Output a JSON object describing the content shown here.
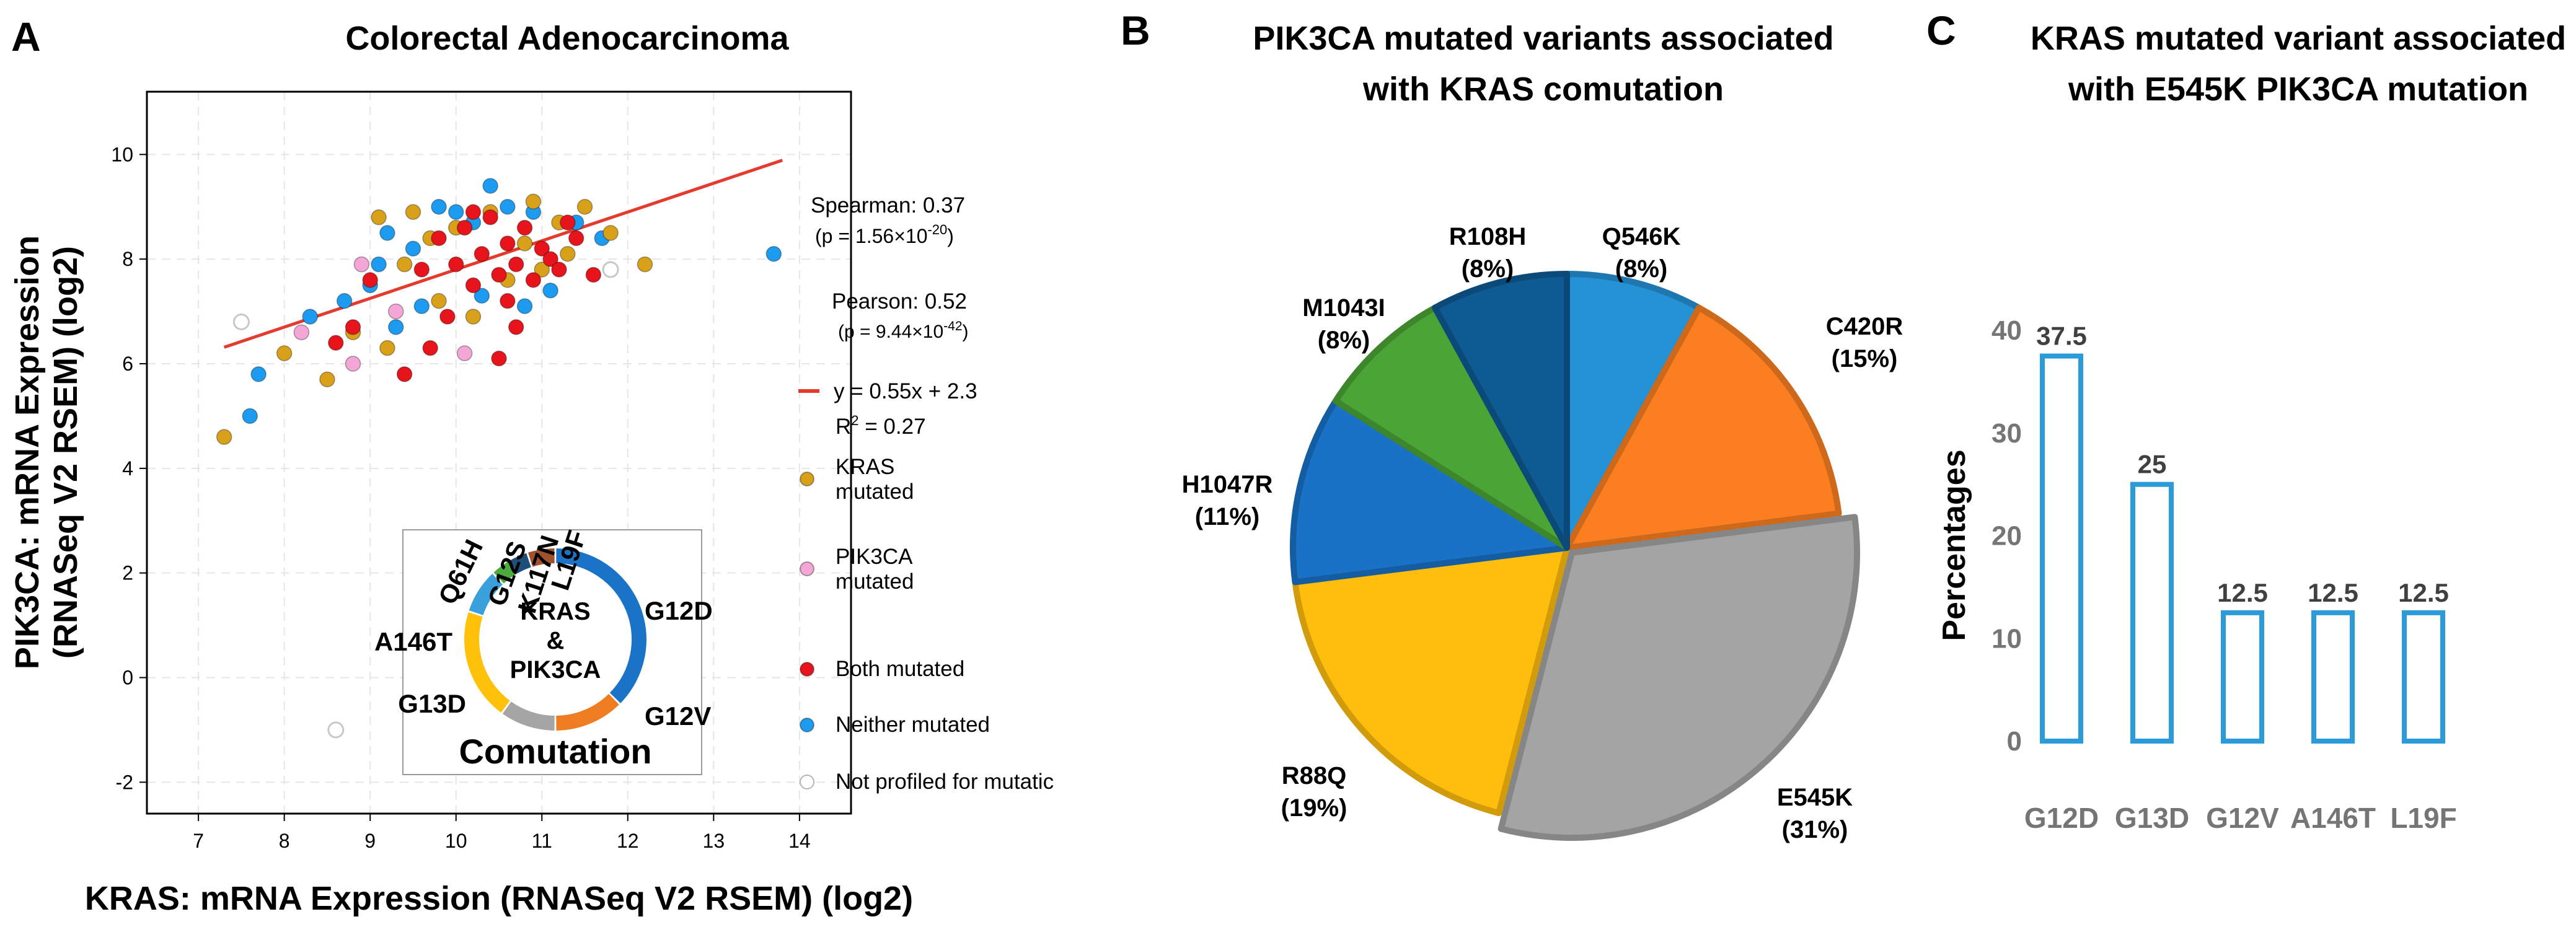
{
  "panel_a": {
    "letter": "A",
    "title": "Colorectal Adenocarcinoma",
    "xlabel": "KRAS: mRNA Expression (RNASeq V2 RSEM) (log2)",
    "ylabel_line1": "PIK3CA: mRNA Expression",
    "ylabel_line2": "(RNASeq V2 RSEM) (log2)",
    "stats": {
      "spearman": "Spearman: 0.37",
      "spearman_p": "(p = 1.56×10",
      "spearman_p_exp": "-20",
      "pearson": "Pearson: 0.52",
      "pearson_p": "(p = 9.44×10",
      "pearson_p_exp": "-42",
      "equation": "y = 0.55x + 2.3",
      "r2": "R",
      "r2_sup": "2",
      "r2_value": " = 0.27"
    },
    "legend": [
      {
        "label": "KRAS",
        "label2": "mutated",
        "color": "#d9a11a"
      },
      {
        "label": "PIK3CA",
        "label2": "mutated",
        "color": "#f4a6d7"
      },
      {
        "label": "Both mutated",
        "label2": "",
        "color": "#e8141b"
      },
      {
        "label": "Neither mutated",
        "label2": "",
        "color": "#1c9bf0"
      },
      {
        "label": "Not profiled for mutatic",
        "label2": "",
        "color": "#ffffff"
      }
    ],
    "donut": {
      "center_line1": "KRAS",
      "center_line2": "&",
      "center_line3": "PIK3CA",
      "caption": "Comutation",
      "segments": [
        {
          "label": "G12D",
          "value": 37.5,
          "color": "#1a73c7"
        },
        {
          "label": "G12V",
          "value": 12.5,
          "color": "#ee7d22"
        },
        {
          "label": "G13D",
          "value": 10,
          "color": "#a5a5a5"
        },
        {
          "label": "A146T",
          "value": 20,
          "color": "#ffc10a"
        },
        {
          "label": "Q61H",
          "value": 8,
          "color": "#3aa0dc"
        },
        {
          "label": "G12S",
          "value": 3.5,
          "color": "#4daa3e"
        },
        {
          "label": "K117N",
          "value": 3.5,
          "color": "#1f4e79"
        },
        {
          "label": "L19F",
          "value": 5,
          "color": "#a0522d"
        }
      ]
    }
  },
  "panel_b": {
    "letter": "B",
    "title_line1": "PIK3CA mutated variants associated",
    "title_line2": "with KRAS comutation"
  },
  "panel_c": {
    "letter": "C",
    "title_line1": "KRAS mutated variant associated",
    "title_line2": "with E545K PIK3CA mutation"
  },
  "chart_data": [
    {
      "type": "scatter",
      "title": "Colorectal Adenocarcinoma",
      "xlabel": "KRAS: mRNA Expression (RNASeq V2 RSEM) (log2)",
      "ylabel": "PIK3CA: mRNA Expression (RNASeq V2 RSEM) (log2)",
      "xlim": [
        6.4,
        14.6
      ],
      "ylim": [
        -2.6,
        11.2
      ],
      "xticks": [
        7,
        8,
        9,
        10,
        11,
        12,
        13,
        14
      ],
      "yticks": [
        -2,
        0,
        2,
        4,
        6,
        8,
        10
      ],
      "grid": true,
      "fit_line": {
        "slope": 0.55,
        "intercept": 2.3,
        "x_range": [
          7.3,
          13.8
        ],
        "color": "#e53a2e"
      },
      "series": [
        {
          "name": "KRAS mutated",
          "color": "#d9a11a",
          "points": [
            [
              7.3,
              4.6
            ],
            [
              8.0,
              6.2
            ],
            [
              8.5,
              5.7
            ],
            [
              9.1,
              8.8
            ],
            [
              9.4,
              7.9
            ],
            [
              9.7,
              8.4
            ],
            [
              10.0,
              8.6
            ],
            [
              10.4,
              8.9
            ],
            [
              10.8,
              8.3
            ],
            [
              11.2,
              8.7
            ],
            [
              11.5,
              9.0
            ],
            [
              12.2,
              7.9
            ],
            [
              9.8,
              7.2
            ],
            [
              10.6,
              7.6
            ],
            [
              11.0,
              7.8
            ],
            [
              8.8,
              6.6
            ],
            [
              9.2,
              6.3
            ],
            [
              10.2,
              6.9
            ],
            [
              11.8,
              8.5
            ],
            [
              9.5,
              8.9
            ],
            [
              10.9,
              9.1
            ],
            [
              11.3,
              8.1
            ]
          ]
        },
        {
          "name": "PIK3CA mutated",
          "color": "#f4a6d7",
          "points": [
            [
              8.2,
              6.6
            ],
            [
              8.8,
              6.0
            ],
            [
              8.9,
              7.9
            ],
            [
              9.3,
              7.0
            ],
            [
              10.1,
              6.2
            ]
          ]
        },
        {
          "name": "Both mutated",
          "color": "#e8141b",
          "points": [
            [
              8.6,
              6.4
            ],
            [
              9.0,
              7.6
            ],
            [
              9.4,
              5.8
            ],
            [
              9.6,
              7.8
            ],
            [
              9.8,
              8.4
            ],
            [
              10.0,
              7.9
            ],
            [
              10.1,
              8.6
            ],
            [
              10.2,
              7.5
            ],
            [
              10.3,
              8.1
            ],
            [
              10.4,
              8.8
            ],
            [
              10.5,
              7.7
            ],
            [
              10.6,
              8.3
            ],
            [
              10.7,
              7.9
            ],
            [
              10.8,
              8.6
            ],
            [
              10.9,
              7.6
            ],
            [
              11.0,
              8.2
            ],
            [
              11.1,
              8.0
            ],
            [
              11.2,
              7.8
            ],
            [
              11.4,
              8.4
            ],
            [
              9.9,
              6.9
            ],
            [
              10.5,
              6.1
            ],
            [
              10.7,
              6.7
            ],
            [
              11.6,
              7.7
            ],
            [
              9.7,
              6.3
            ],
            [
              8.8,
              6.7
            ],
            [
              10.2,
              8.9
            ],
            [
              10.6,
              7.2
            ],
            [
              11.3,
              8.7
            ]
          ]
        },
        {
          "name": "Neither mutated",
          "color": "#1c9bf0",
          "points": [
            [
              7.6,
              5.0
            ],
            [
              7.7,
              5.8
            ],
            [
              8.3,
              6.9
            ],
            [
              8.7,
              7.2
            ],
            [
              9.0,
              7.5
            ],
            [
              9.2,
              8.5
            ],
            [
              9.5,
              8.2
            ],
            [
              9.8,
              9.0
            ],
            [
              10.0,
              8.9
            ],
            [
              10.2,
              8.7
            ],
            [
              10.4,
              9.4
            ],
            [
              10.6,
              9.0
            ],
            [
              10.9,
              8.9
            ],
            [
              11.4,
              8.7
            ],
            [
              11.7,
              8.4
            ],
            [
              13.7,
              8.1
            ],
            [
              9.3,
              6.7
            ],
            [
              9.6,
              7.1
            ],
            [
              10.3,
              7.3
            ],
            [
              10.8,
              7.1
            ],
            [
              11.1,
              7.4
            ],
            [
              9.1,
              7.9
            ]
          ]
        },
        {
          "name": "Not profiled for mutatic",
          "color": "#ffffff",
          "points": [
            [
              7.5,
              6.8
            ],
            [
              8.6,
              -1.0
            ],
            [
              11.8,
              7.8
            ]
          ]
        }
      ]
    },
    {
      "type": "pie",
      "title": "PIK3CA mutated variants associated with KRAS comutation",
      "slices": [
        {
          "label": "Q546K",
          "value": 8,
          "pct": "(8%)",
          "color": "#2592d6"
        },
        {
          "label": "C420R",
          "value": 15,
          "pct": "(15%)",
          "color": "#fb7f20"
        },
        {
          "label": "E545K",
          "value": 31,
          "pct": "(31%)",
          "color": "#a4a4a4"
        },
        {
          "label": "R88Q",
          "value": 19,
          "pct": "(19%)",
          "color": "#ffbd0d"
        },
        {
          "label": "H1047R",
          "value": 11,
          "pct": "(11%)",
          "color": "#1a72c6"
        },
        {
          "label": "M1043I",
          "value": 8,
          "pct": "(8%)",
          "color": "#4aa436"
        },
        {
          "label": "R108H",
          "value": 8,
          "pct": "(8%)",
          "color": "#0e5a92"
        }
      ]
    },
    {
      "type": "bar",
      "title": "KRAS mutated variant associated with E545K PIK3CA mutation",
      "categories": [
        "G12D",
        "G13D",
        "G12V",
        "A146T",
        "L19F"
      ],
      "values": [
        37.5,
        25,
        12.5,
        12.5,
        12.5
      ],
      "value_labels": [
        "37.5",
        "25",
        "12.5",
        "12.5",
        "12.5"
      ],
      "ylabel": "Percentages",
      "ylim": [
        0,
        42
      ],
      "yticks": [
        0,
        10,
        20,
        30,
        40
      ],
      "color": "#2b9ad8"
    }
  ]
}
